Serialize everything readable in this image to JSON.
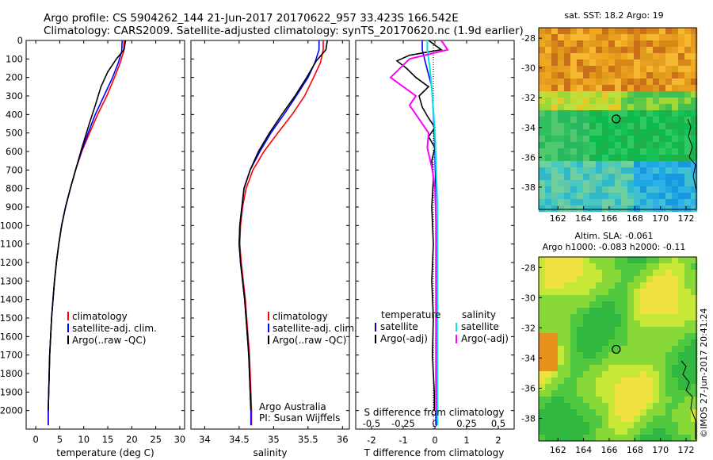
{
  "header": {
    "line1": "Argo profile: CS 5904262_144 21-Jun-2017 20170622_957 33.423S 166.542E",
    "line2": "Climatology: CARS2009. Satellite-adjusted climatology: synTS_20170620.nc (1.9d earlier)"
  },
  "colors": {
    "climatology": "#ff0000",
    "satellite": "#0000ff",
    "argo": "#000000",
    "sal_sat": "#00e5e5",
    "sal_argo": "#ff00ff"
  },
  "panels": {
    "temperature": {
      "xlabel": "temperature (deg C)",
      "legend": [
        "climatology",
        "satellite-adj. clim.",
        "Argo(..raw -QC)"
      ]
    },
    "salinity": {
      "xlabel": "salinity",
      "legend": [
        "climatology",
        "satellite-adj. clim.",
        "Argo(..raw -QC)"
      ],
      "credit1": "Argo Australia",
      "credit2": "PI: Susan Wijffels"
    },
    "difference": {
      "top_label": "S difference from climatology",
      "xlabel": "T difference from climatology",
      "legend_temp_title": "temperature",
      "legend_sal_title": "salinity",
      "legend_temp": [
        "satellite",
        "Argo(-adj)"
      ],
      "legend_sal": [
        "satellite",
        "Argo(-adj)"
      ]
    }
  },
  "maps": {
    "sst": {
      "title": "sat. SST: 18.2 Argo: 19"
    },
    "sla": {
      "title1": "Altim. SLA: -0.061",
      "title2": "Argo h1000: -0.083 h2000: -0.11"
    },
    "watermark": "©IMOS 27-Jun-2017 20:41:24"
  },
  "chart_data": [
    {
      "type": "line",
      "name": "temperature-profile",
      "xlabel": "temperature (deg C)",
      "ylabel": "",
      "xlim": [
        -2,
        31
      ],
      "ylim": [
        2100,
        0
      ],
      "xticks": [
        0,
        5,
        10,
        15,
        20,
        25,
        30
      ],
      "yticks": [
        0,
        100,
        200,
        300,
        400,
        500,
        600,
        700,
        800,
        900,
        1000,
        1100,
        1200,
        1300,
        1400,
        1500,
        1600,
        1700,
        1800,
        1900,
        2000
      ],
      "series": [
        {
          "name": "climatology",
          "points": [
            [
              18.4,
              0
            ],
            [
              18.3,
              60
            ],
            [
              17.6,
              120
            ],
            [
              16.4,
              200
            ],
            [
              14.8,
              300
            ],
            [
              12.9,
              400
            ],
            [
              11.2,
              500
            ],
            [
              9.6,
              600
            ],
            [
              8.3,
              700
            ],
            [
              7.2,
              800
            ],
            [
              6.2,
              900
            ],
            [
              5.4,
              1000
            ],
            [
              4.8,
              1100
            ],
            [
              4.3,
              1200
            ],
            [
              3.9,
              1300
            ],
            [
              3.6,
              1400
            ],
            [
              3.3,
              1500
            ],
            [
              3.1,
              1600
            ],
            [
              2.9,
              1700
            ],
            [
              2.8,
              1800
            ],
            [
              2.7,
              1900
            ],
            [
              2.6,
              2000
            ],
            [
              2.6,
              2080
            ]
          ]
        },
        {
          "name": "satellite-adj. clim.",
          "points": [
            [
              18.0,
              0
            ],
            [
              17.9,
              60
            ],
            [
              17.2,
              120
            ],
            [
              16.0,
              200
            ],
            [
              14.2,
              300
            ],
            [
              12.4,
              400
            ],
            [
              10.9,
              500
            ],
            [
              9.5,
              600
            ],
            [
              8.3,
              700
            ],
            [
              7.2,
              800
            ],
            [
              6.2,
              900
            ],
            [
              5.4,
              1000
            ],
            [
              4.8,
              1100
            ],
            [
              4.3,
              1200
            ],
            [
              3.9,
              1300
            ],
            [
              3.6,
              1400
            ],
            [
              3.3,
              1500
            ],
            [
              3.1,
              1600
            ],
            [
              2.9,
              1700
            ],
            [
              2.8,
              1800
            ],
            [
              2.7,
              1900
            ],
            [
              2.6,
              2000
            ],
            [
              2.6,
              2080
            ]
          ]
        },
        {
          "name": "Argo(..raw -QC)",
          "points": [
            [
              18.7,
              0
            ],
            [
              18.4,
              50
            ],
            [
              16.8,
              100
            ],
            [
              15.0,
              170
            ],
            [
              13.6,
              250
            ],
            [
              12.4,
              350
            ],
            [
              10.9,
              470
            ],
            [
              9.5,
              590
            ],
            [
              8.3,
              700
            ],
            [
              7.2,
              800
            ],
            [
              6.2,
              900
            ],
            [
              5.4,
              1000
            ],
            [
              4.8,
              1100
            ],
            [
              4.3,
              1200
            ],
            [
              3.9,
              1300
            ],
            [
              3.6,
              1400
            ],
            [
              3.3,
              1500
            ],
            [
              3.1,
              1600
            ],
            [
              2.9,
              1700
            ],
            [
              2.8,
              1800
            ],
            [
              2.7,
              1900
            ],
            [
              2.6,
              2000
            ]
          ]
        }
      ]
    },
    {
      "type": "line",
      "name": "salinity-profile",
      "xlabel": "salinity",
      "ylabel": "",
      "xlim": [
        33.8,
        36.1
      ],
      "ylim": [
        2100,
        0
      ],
      "xticks": [
        34,
        34.5,
        35,
        35.5,
        36
      ],
      "series": [
        {
          "name": "climatology",
          "points": [
            [
              35.72,
              0
            ],
            [
              35.72,
              50
            ],
            [
              35.68,
              120
            ],
            [
              35.58,
              200
            ],
            [
              35.45,
              300
            ],
            [
              35.27,
              400
            ],
            [
              35.06,
              500
            ],
            [
              34.86,
              600
            ],
            [
              34.7,
              700
            ],
            [
              34.6,
              800
            ],
            [
              34.55,
              900
            ],
            [
              34.52,
              1000
            ],
            [
              34.51,
              1100
            ],
            [
              34.53,
              1200
            ],
            [
              34.56,
              1300
            ],
            [
              34.59,
              1400
            ],
            [
              34.61,
              1500
            ],
            [
              34.63,
              1600
            ],
            [
              34.65,
              1700
            ],
            [
              34.66,
              1800
            ],
            [
              34.67,
              1900
            ],
            [
              34.68,
              2000
            ],
            [
              34.68,
              2080
            ]
          ]
        },
        {
          "name": "satellite-adj. clim.",
          "points": [
            [
              35.66,
              0
            ],
            [
              35.66,
              50
            ],
            [
              35.6,
              120
            ],
            [
              35.5,
              200
            ],
            [
              35.33,
              300
            ],
            [
              35.15,
              400
            ],
            [
              34.96,
              500
            ],
            [
              34.8,
              600
            ],
            [
              34.66,
              700
            ],
            [
              34.57,
              800
            ],
            [
              34.54,
              900
            ],
            [
              34.51,
              1000
            ],
            [
              34.5,
              1100
            ],
            [
              34.52,
              1200
            ],
            [
              34.55,
              1300
            ],
            [
              34.58,
              1400
            ],
            [
              34.6,
              1500
            ],
            [
              34.62,
              1600
            ],
            [
              34.64,
              1700
            ],
            [
              34.65,
              1800
            ],
            [
              34.66,
              1900
            ],
            [
              34.67,
              2000
            ],
            [
              34.67,
              2080
            ]
          ]
        },
        {
          "name": "Argo(..raw -QC)",
          "points": [
            [
              35.78,
              0
            ],
            [
              35.76,
              50
            ],
            [
              35.62,
              110
            ],
            [
              35.48,
              200
            ],
            [
              35.31,
              300
            ],
            [
              35.12,
              400
            ],
            [
              34.94,
              500
            ],
            [
              34.78,
              600
            ],
            [
              34.66,
              700
            ],
            [
              34.57,
              800
            ],
            [
              34.54,
              900
            ],
            [
              34.51,
              1000
            ],
            [
              34.5,
              1100
            ],
            [
              34.52,
              1200
            ],
            [
              34.55,
              1300
            ],
            [
              34.58,
              1400
            ],
            [
              34.6,
              1500
            ],
            [
              34.62,
              1600
            ],
            [
              34.64,
              1700
            ],
            [
              34.65,
              1800
            ],
            [
              34.66,
              1900
            ],
            [
              34.67,
              2000
            ]
          ]
        }
      ]
    },
    {
      "type": "line",
      "name": "difference-profile",
      "xlabel": "T difference from climatology",
      "top_label": "S difference from climatology",
      "xlim": [
        -2.5,
        2.5
      ],
      "ylim": [
        2100,
        0
      ],
      "xticks_bottom": [
        -2,
        -1,
        0,
        1,
        2
      ],
      "xticks_top": [
        -0.5,
        -0.25,
        0,
        0.25,
        0.5
      ],
      "series": [
        {
          "name": "temperature satellite",
          "points": [
            [
              -0.4,
              0
            ],
            [
              -0.4,
              50
            ],
            [
              -0.3,
              120
            ],
            [
              -0.1,
              250
            ],
            [
              -0.05,
              400
            ],
            [
              0,
              600
            ],
            [
              0.02,
              800
            ],
            [
              0.03,
              1000
            ],
            [
              0.03,
              1200
            ],
            [
              0.03,
              1400
            ],
            [
              0.03,
              1600
            ],
            [
              0.03,
              1800
            ],
            [
              0.03,
              2000
            ],
            [
              0.03,
              2080
            ]
          ]
        },
        {
          "name": "temperature Argo(-adj)",
          "points": [
            [
              -0.2,
              0
            ],
            [
              0.2,
              50
            ],
            [
              -0.8,
              80
            ],
            [
              -1.2,
              110
            ],
            [
              -0.9,
              150
            ],
            [
              -0.6,
              200
            ],
            [
              -0.2,
              250
            ],
            [
              -0.5,
              300
            ],
            [
              -0.4,
              360
            ],
            [
              -0.2,
              420
            ],
            [
              0.0,
              470
            ],
            [
              -0.2,
              520
            ],
            [
              0.0,
              580
            ],
            [
              -0.1,
              650
            ],
            [
              -0.05,
              750
            ],
            [
              -0.1,
              900
            ],
            [
              -0.05,
              1100
            ],
            [
              -0.1,
              1300
            ],
            [
              -0.05,
              1500
            ],
            [
              -0.08,
              1700
            ],
            [
              -0.02,
              1900
            ],
            [
              -0.02,
              2000
            ]
          ]
        },
        {
          "name": "salinity satellite",
          "points": [
            [
              -0.06,
              0
            ],
            [
              -0.06,
              50
            ],
            [
              -0.04,
              150
            ],
            [
              -0.02,
              300
            ],
            [
              0,
              500
            ],
            [
              0.01,
              700
            ],
            [
              0.02,
              900
            ],
            [
              0.02,
              1200
            ],
            [
              0.02,
              1500
            ],
            [
              0.02,
              1800
            ],
            [
              0.02,
              2080
            ]
          ]
        },
        {
          "name": "salinity Argo(-adj)",
          "points": [
            [
              0.05,
              0
            ],
            [
              0.1,
              50
            ],
            [
              -0.2,
              100
            ],
            [
              -0.35,
              200
            ],
            [
              -0.25,
              250
            ],
            [
              -0.15,
              300
            ],
            [
              -0.2,
              350
            ],
            [
              -0.15,
              400
            ],
            [
              -0.05,
              500
            ],
            [
              -0.06,
              580
            ],
            [
              -0.02,
              700
            ],
            [
              0,
              800
            ],
            [
              0.01,
              1000
            ],
            [
              0.01,
              1200
            ],
            [
              0.01,
              1400
            ],
            [
              0.01,
              1600
            ],
            [
              0.01,
              1800
            ],
            [
              0.01,
              2000
            ]
          ]
        }
      ]
    },
    {
      "type": "heatmap",
      "name": "sst-map",
      "title": "sat. SST: 18.2 Argo: 19",
      "xticks": [
        162,
        164,
        166,
        168,
        170,
        172
      ],
      "yticks": [
        -28,
        -30,
        -32,
        -34,
        -36,
        -38
      ],
      "xlim": [
        160.5,
        172.8
      ],
      "ylim": [
        -39.5,
        -27.3
      ],
      "float_position": [
        166.542,
        -33.423
      ]
    },
    {
      "type": "heatmap",
      "name": "sla-map",
      "title": "Altim. SLA: -0.061",
      "xticks": [
        162,
        164,
        166,
        168,
        170,
        172
      ],
      "yticks": [
        -28,
        -30,
        -32,
        -34,
        -36,
        -38
      ],
      "xlim": [
        160.5,
        172.8
      ],
      "ylim": [
        -39.5,
        -27.3
      ],
      "float_position": [
        166.542,
        -33.423
      ]
    }
  ]
}
